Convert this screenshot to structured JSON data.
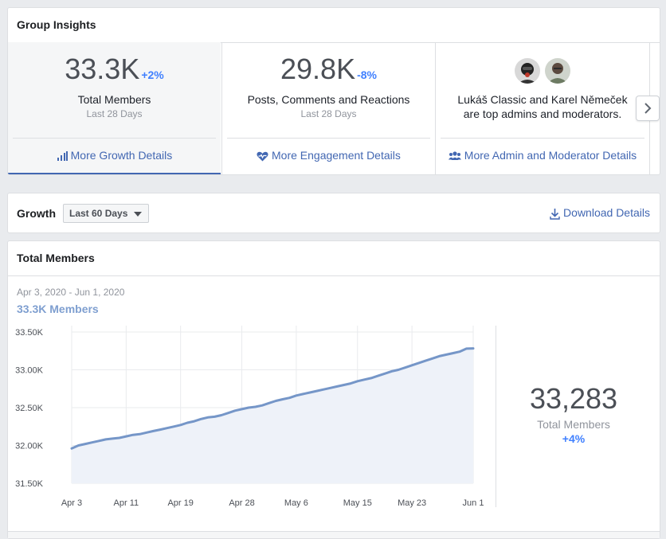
{
  "insights": {
    "title": "Group Insights",
    "members": {
      "value": "33.3K",
      "change": "+2%",
      "label": "Total Members",
      "period": "Last 28 Days",
      "link": "More Growth Details"
    },
    "engagement": {
      "value": "29.8K",
      "change": "-8%",
      "label": "Posts, Comments and Reactions",
      "period": "Last 28 Days",
      "link": "More Engagement Details"
    },
    "admins": {
      "line1": "Lukáš Classic and Karel Němeček",
      "line2": "are top admins and moderators.",
      "link": "More Admin and Moderator Details"
    },
    "next_icon": "chevron-right-icon"
  },
  "growth": {
    "title": "Growth",
    "range_selected": "Last 60 Days",
    "download_label": "Download Details"
  },
  "members_panel": {
    "title": "Total Members",
    "date_range": "Apr 3, 2020 - Jun 1, 2020",
    "count_label": "33.3K  Members",
    "summary_value": "33,283",
    "summary_label": "Total Members",
    "summary_change": "+4%"
  },
  "colors": {
    "accent": "#4267b2",
    "positive": "#4080ff",
    "line": "#7596c8",
    "area": "#eef2f9"
  },
  "chart_data": {
    "type": "area",
    "title": "",
    "xlabel": "",
    "ylabel": "",
    "y_tick_labels": [
      "31.50K",
      "32.00K",
      "32.50K",
      "33.00K",
      "33.50K"
    ],
    "y_ticks": [
      31500,
      32000,
      32500,
      33000,
      33500
    ],
    "ylim": [
      31500,
      33500
    ],
    "x_tick_labels": [
      "Apr 3",
      "Apr 11",
      "Apr 19",
      "Apr 28",
      "May 6",
      "May 15",
      "May 23",
      "Jun 1"
    ],
    "x_tick_days": [
      0,
      8,
      16,
      25,
      33,
      42,
      50,
      59
    ],
    "grid": true,
    "series": [
      {
        "values": [
          31960,
          32000,
          32020,
          32040,
          32060,
          32080,
          32090,
          32100,
          32120,
          32140,
          32150,
          32170,
          32190,
          32210,
          32230,
          32250,
          32270,
          32300,
          32320,
          32350,
          32370,
          32380,
          32400,
          32430,
          32460,
          32480,
          32500,
          32510,
          32530,
          32560,
          32590,
          32610,
          32630,
          32660,
          32680,
          32700,
          32720,
          32740,
          32760,
          32780,
          32800,
          32820,
          32850,
          32870,
          32890,
          32920,
          32950,
          32980,
          33000,
          33030,
          33060,
          33090,
          33120,
          33150,
          33180,
          33200,
          33220,
          33240,
          33280,
          33283
        ]
      }
    ]
  }
}
